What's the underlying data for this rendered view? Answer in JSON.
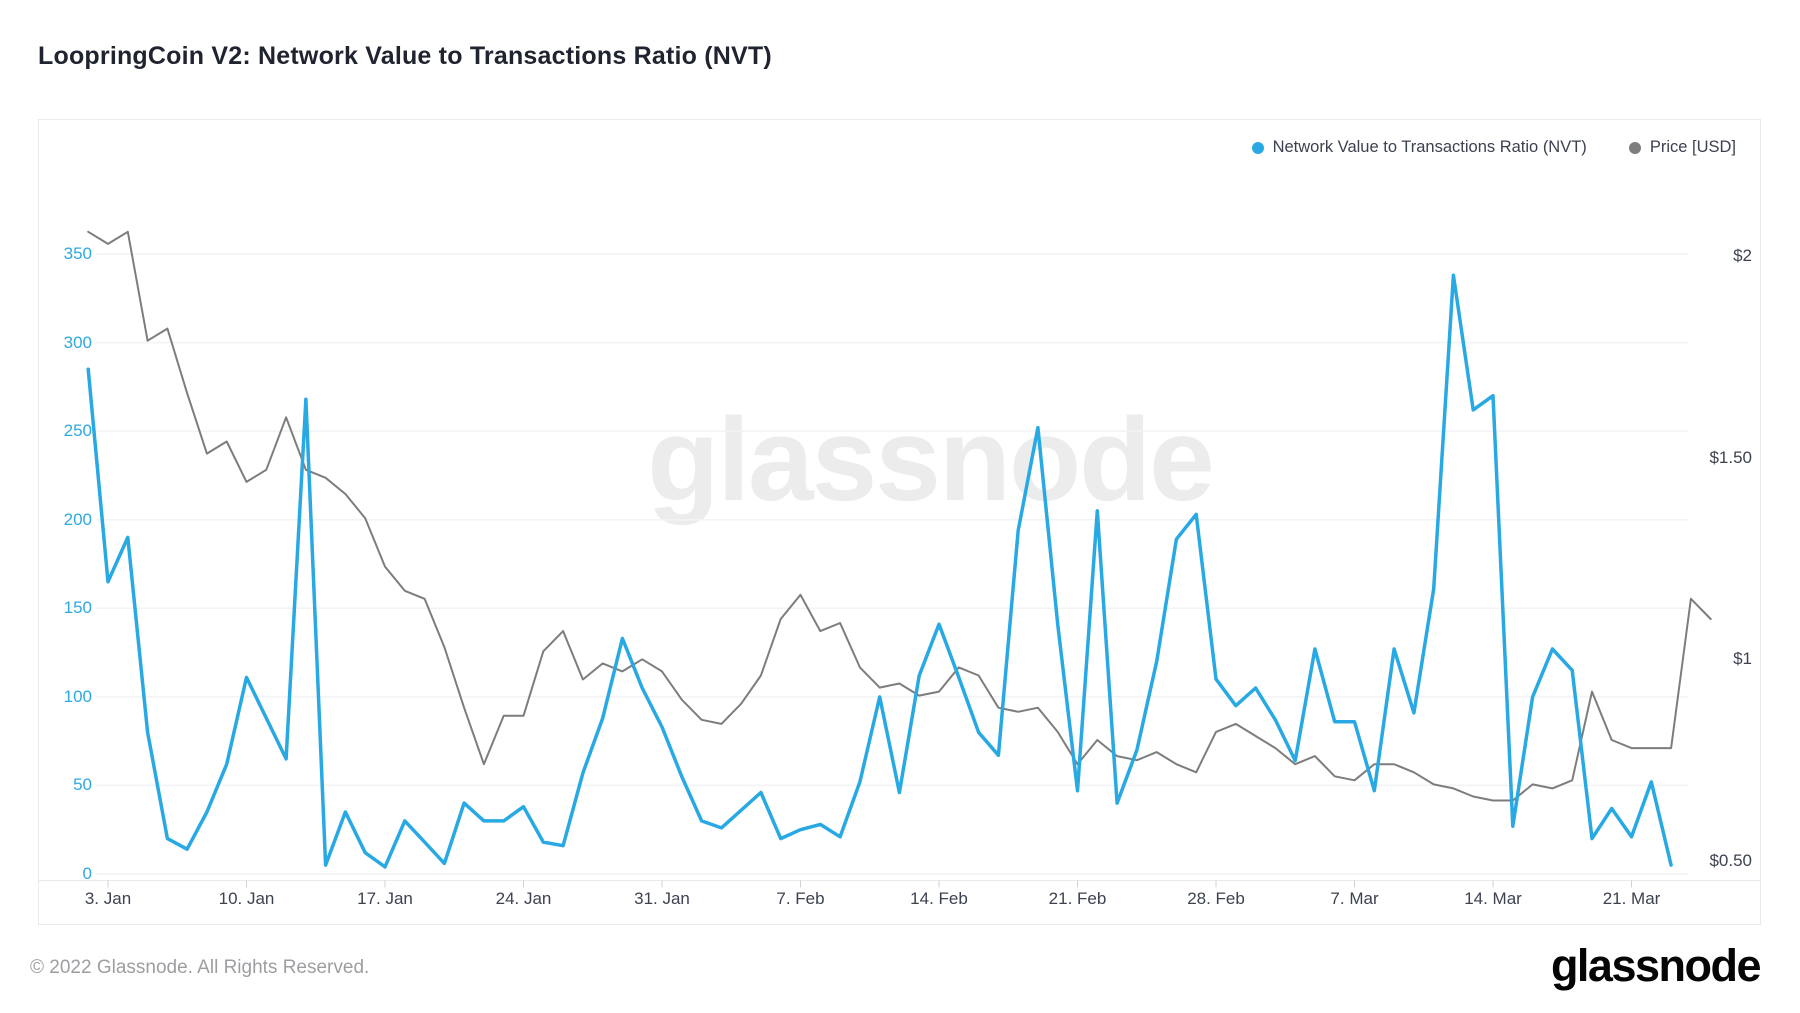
{
  "page": {
    "title": "LoopringCoin V2: Network Value to Transactions Ratio (NVT)",
    "watermark": "glassnode",
    "footer_copyright": "© 2022 Glassnode. All Rights Reserved.",
    "footer_logo": "glassnode"
  },
  "legend": {
    "items": [
      {
        "label": "Network Value to Transactions Ratio (NVT)",
        "color": "#29a9e3"
      },
      {
        "label": "Price [USD]",
        "color": "#7d7d7d"
      }
    ]
  },
  "chart_data": {
    "type": "line",
    "title": "LoopringCoin V2: Network Value to Transactions Ratio (NVT)",
    "grid": "horizontal-only",
    "legend_position": "top-right",
    "x_axis": {
      "first_tick_date": "2022-01-03",
      "tick_interval_days": 7,
      "tick_labels": [
        "3. Jan",
        "10. Jan",
        "17. Jan",
        "24. Jan",
        "31. Jan",
        "7. Feb",
        "14. Feb",
        "21. Feb",
        "28. Feb",
        "7. Mar",
        "14. Mar",
        "21. Mar"
      ]
    },
    "y_axis_left": {
      "ticks": [
        0,
        50,
        100,
        150,
        200,
        250,
        300,
        350
      ],
      "range": [
        0,
        395
      ],
      "color": "#2ea9e0"
    },
    "y_axis_right": {
      "ticks": [
        {
          "label": "$0.50",
          "value": 0.5
        },
        {
          "label": "$1",
          "value": 1
        },
        {
          "label": "$1.50",
          "value": 1.5
        },
        {
          "label": "$2",
          "value": 2
        }
      ],
      "range": [
        0.47,
        2.1
      ],
      "color": "#3c4250"
    },
    "series": [
      {
        "name": "Price [USD]",
        "axis": "right",
        "color": "#7d7d7d",
        "stroke_width": 2,
        "start_date": "2022-01-02",
        "cadence": "daily",
        "values": [
          2.06,
          2.03,
          2.06,
          1.79,
          1.82,
          1.66,
          1.51,
          1.54,
          1.44,
          1.47,
          1.6,
          1.47,
          1.45,
          1.41,
          1.35,
          1.23,
          1.17,
          1.15,
          1.03,
          0.88,
          0.74,
          0.86,
          0.86,
          1.02,
          1.07,
          0.95,
          0.99,
          0.97,
          1.0,
          0.97,
          0.9,
          0.85,
          0.84,
          0.89,
          0.96,
          1.1,
          1.16,
          1.07,
          1.09,
          0.98,
          0.93,
          0.94,
          0.91,
          0.92,
          0.98,
          0.96,
          0.88,
          0.87,
          0.88,
          0.82,
          0.74,
          0.8,
          0.76,
          0.75,
          0.77,
          0.74,
          0.72,
          0.82,
          0.84,
          0.81,
          0.78,
          0.74,
          0.76,
          0.71,
          0.7,
          0.74,
          0.74,
          0.72,
          0.69,
          0.68,
          0.66,
          0.65,
          0.65,
          0.69,
          0.68,
          0.7,
          0.92,
          0.8,
          0.78,
          0.78,
          0.78,
          1.15,
          1.1
        ]
      },
      {
        "name": "Network Value to Transactions Ratio (NVT)",
        "axis": "left",
        "color": "#29a9e3",
        "stroke_width": 3.5,
        "start_date": "2022-01-02",
        "cadence": "daily",
        "values": [
          285,
          165,
          190,
          80,
          20,
          14,
          35,
          62,
          111,
          88,
          65,
          268,
          5,
          35,
          12,
          4,
          30,
          18,
          6,
          40,
          30,
          30,
          38,
          18,
          16,
          57,
          88,
          133,
          105,
          83,
          55,
          30,
          26,
          36,
          46,
          20,
          25,
          28,
          21,
          52,
          100,
          46,
          112,
          141,
          111,
          80,
          67,
          194,
          252,
          141,
          47,
          205,
          40,
          70,
          120,
          189,
          203,
          110,
          95,
          105,
          87,
          64,
          127,
          86,
          86,
          47,
          127,
          91,
          161,
          338,
          262,
          270,
          27,
          100,
          127,
          115,
          20,
          37,
          21,
          52,
          5
        ]
      }
    ]
  }
}
